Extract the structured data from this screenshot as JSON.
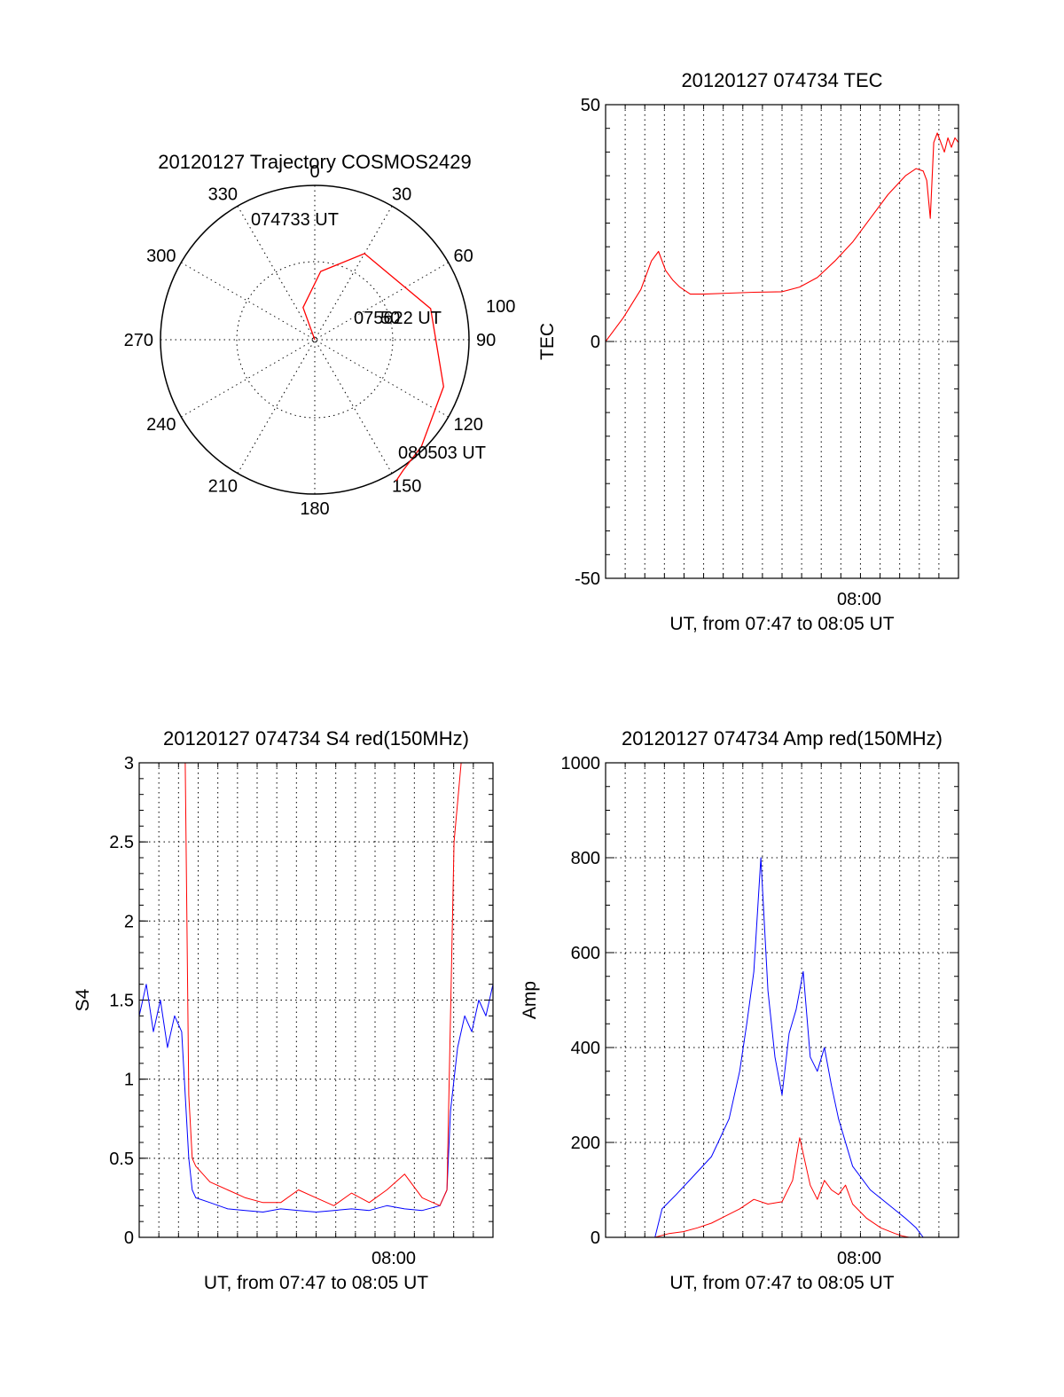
{
  "chart_data": [
    {
      "id": "polar",
      "type": "scatter",
      "subtype": "polar-trajectory",
      "title": "20120127 Trajectory COSMOS2429",
      "azimuth_labels": [
        "0",
        "30",
        "60",
        "90",
        "120",
        "150",
        "180",
        "210",
        "240",
        "270",
        "300",
        "330"
      ],
      "elevation_ring_label": "100",
      "series": [
        {
          "color": "#ff0000",
          "points": [
            [
              330,
              0
            ],
            [
              340,
              20
            ],
            [
              5,
              40
            ],
            [
              30,
              58
            ],
            [
              75,
              70
            ],
            [
              110,
              80
            ],
            [
              135,
              88
            ],
            [
              146,
              92
            ],
            [
              150,
              95
            ]
          ]
        }
      ],
      "annotations": [
        {
          "text": "074733 UT"
        },
        {
          "text": "075622 UT"
        },
        {
          "text": "50"
        },
        {
          "text": "080503 UT"
        }
      ]
    },
    {
      "id": "tec",
      "type": "line",
      "title": "20120127 074734 TEC",
      "xlabel": "UT, from 07:47 to 08:05 UT",
      "ylabel": "TEC",
      "x_tick_label": "08:00",
      "ylim": [
        -50,
        50
      ],
      "yticks": [
        "50",
        "0",
        "-50"
      ],
      "series": [
        {
          "color": "#ff0000",
          "x": [
            0.0,
            0.05,
            0.1,
            0.13,
            0.15,
            0.17,
            0.19,
            0.21,
            0.24,
            0.28,
            0.35,
            0.42,
            0.5,
            0.55,
            0.6,
            0.65,
            0.7,
            0.75,
            0.8,
            0.85,
            0.88,
            0.9,
            0.91,
            0.92,
            0.93,
            0.94,
            0.95,
            0.96,
            0.97,
            0.98,
            0.99,
            1.0
          ],
          "y": [
            0,
            5,
            11,
            17,
            19,
            15,
            13,
            11.5,
            10,
            10,
            10.2,
            10.4,
            10.5,
            11.5,
            13.5,
            17,
            21,
            26,
            31,
            35,
            36.5,
            36,
            34,
            26,
            42,
            44,
            42,
            40,
            43,
            41,
            43,
            42
          ]
        }
      ]
    },
    {
      "id": "s4",
      "type": "line",
      "title": "20120127 074734 S4 red(150MHz)",
      "xlabel": "UT, from 07:47 to 08:05 UT",
      "ylabel": "S4",
      "x_tick_label": "08:00",
      "ylim": [
        0,
        3
      ],
      "yticks": [
        "3",
        "2.5",
        "2",
        "1.5",
        "1",
        "0.5",
        "0"
      ],
      "series": [
        {
          "color": "#0000ff",
          "x": [
            0.0,
            0.02,
            0.04,
            0.06,
            0.08,
            0.1,
            0.12,
            0.14,
            0.15,
            0.16,
            0.2,
            0.25,
            0.3,
            0.35,
            0.4,
            0.45,
            0.5,
            0.55,
            0.6,
            0.65,
            0.7,
            0.75,
            0.8,
            0.85,
            0.87,
            0.88,
            0.9,
            0.92,
            0.94,
            0.96,
            0.98,
            1.0
          ],
          "y": [
            1.4,
            1.6,
            1.3,
            1.5,
            1.2,
            1.4,
            1.3,
            0.5,
            0.3,
            0.25,
            0.22,
            0.18,
            0.17,
            0.16,
            0.18,
            0.17,
            0.16,
            0.17,
            0.18,
            0.17,
            0.2,
            0.18,
            0.17,
            0.2,
            0.3,
            0.8,
            1.2,
            1.4,
            1.3,
            1.5,
            1.4,
            1.6
          ]
        },
        {
          "color": "#ff0000",
          "x": [
            0.0,
            0.02,
            0.05,
            0.08,
            0.1,
            0.12,
            0.13,
            0.14,
            0.15,
            0.16,
            0.18,
            0.2,
            0.25,
            0.3,
            0.35,
            0.4,
            0.45,
            0.5,
            0.55,
            0.6,
            0.65,
            0.7,
            0.75,
            0.8,
            0.85,
            0.87,
            0.89,
            0.91,
            0.93,
            0.95,
            0.97,
            1.0
          ],
          "y": [
            3.0,
            3.0,
            3.0,
            3.0,
            3.0,
            3.0,
            3.0,
            0.9,
            0.5,
            0.45,
            0.4,
            0.35,
            0.3,
            0.25,
            0.22,
            0.22,
            0.3,
            0.25,
            0.2,
            0.28,
            0.22,
            0.3,
            0.4,
            0.25,
            0.2,
            0.3,
            2.5,
            3.0,
            3.0,
            3.0,
            3.0,
            3.0
          ]
        }
      ]
    },
    {
      "id": "amp",
      "type": "line",
      "title": "20120127 074734 Amp red(150MHz)",
      "xlabel": "UT, from 07:47 to 08:05 UT",
      "ylabel": "Amp",
      "x_tick_label": "08:00",
      "ylim": [
        0,
        1000
      ],
      "yticks": [
        "1000",
        "800",
        "600",
        "400",
        "200",
        "0"
      ],
      "series": [
        {
          "color": "#0000ff",
          "x": [
            0.0,
            0.1,
            0.14,
            0.16,
            0.2,
            0.25,
            0.3,
            0.35,
            0.38,
            0.4,
            0.42,
            0.44,
            0.46,
            0.48,
            0.5,
            0.52,
            0.54,
            0.56,
            0.58,
            0.6,
            0.62,
            0.64,
            0.66,
            0.7,
            0.75,
            0.8,
            0.85,
            0.88,
            0.9,
            1.0
          ],
          "y": [
            0,
            0,
            0,
            60,
            90,
            130,
            170,
            250,
            350,
            450,
            560,
            800,
            520,
            380,
            300,
            430,
            480,
            560,
            380,
            350,
            400,
            320,
            250,
            150,
            100,
            70,
            40,
            20,
            0,
            0
          ]
        },
        {
          "color": "#ff0000",
          "x": [
            0.0,
            0.14,
            0.18,
            0.22,
            0.26,
            0.3,
            0.34,
            0.38,
            0.42,
            0.46,
            0.5,
            0.53,
            0.55,
            0.58,
            0.6,
            0.62,
            0.64,
            0.66,
            0.68,
            0.7,
            0.74,
            0.78,
            0.82,
            0.84,
            0.86,
            1.0
          ],
          "y": [
            0,
            0,
            8,
            12,
            20,
            30,
            45,
            60,
            80,
            70,
            75,
            120,
            210,
            110,
            80,
            120,
            100,
            90,
            110,
            70,
            40,
            20,
            8,
            3,
            0,
            0
          ]
        }
      ]
    }
  ]
}
